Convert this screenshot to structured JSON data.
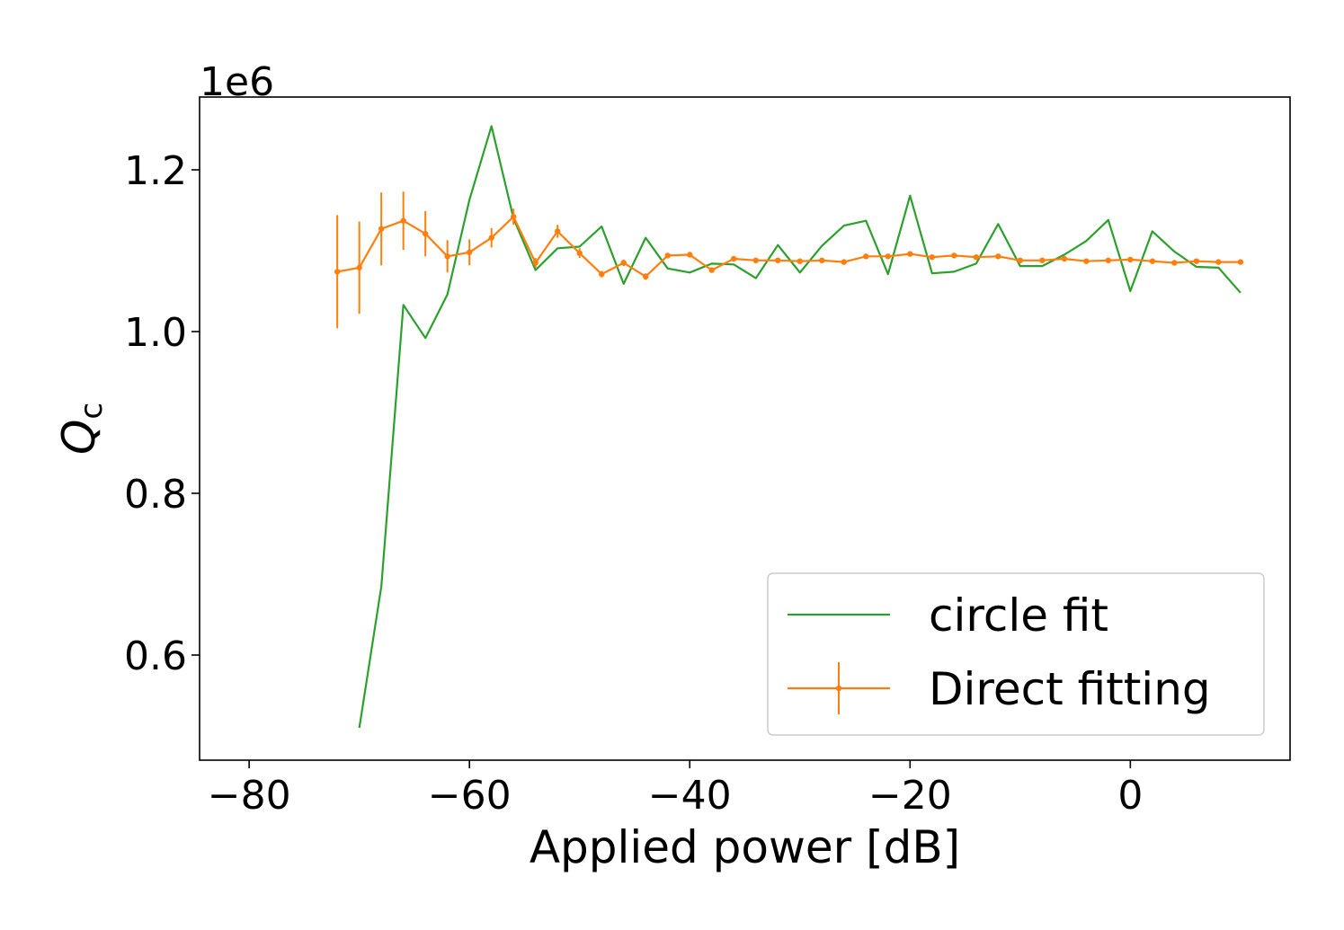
{
  "chart_data": {
    "type": "line",
    "xlabel": "Applied power [dB]",
    "ylabel_main": "Q",
    "ylabel_sub": "c",
    "y_offset_label": "1e6",
    "xlim": [
      -84.5,
      14.5
    ],
    "ylim": [
      0.47,
      1.29
    ],
    "xticks": [
      -80,
      -60,
      -40,
      -20,
      0
    ],
    "xtick_labels": [
      "−80",
      "−60",
      "−40",
      "−20",
      "0"
    ],
    "yticks": [
      0.6,
      0.8,
      1.0,
      1.2
    ],
    "ytick_labels": [
      "0.6",
      "0.8",
      "1.0",
      "1.2"
    ],
    "legend_position": "lower-right",
    "series": [
      {
        "name": "circle fit",
        "color": "#2ca02c",
        "x": [
          -70,
          -68,
          -66,
          -64,
          -62,
          -60,
          -58,
          -56,
          -54,
          -52,
          -50,
          -48,
          -46,
          -44,
          -42,
          -40,
          -38,
          -36,
          -34,
          -32,
          -30,
          -28,
          -26,
          -24,
          -22,
          -20,
          -18,
          -16,
          -14,
          -12,
          -10,
          -8,
          -6,
          -4,
          -2,
          0,
          2,
          4,
          6,
          8,
          10
        ],
        "y": [
          0.51,
          0.685,
          1.033,
          0.992,
          1.046,
          1.163,
          1.254,
          1.14,
          1.076,
          1.103,
          1.105,
          1.13,
          1.059,
          1.116,
          1.078,
          1.073,
          1.084,
          1.083,
          1.066,
          1.107,
          1.073,
          1.106,
          1.131,
          1.137,
          1.071,
          1.168,
          1.072,
          1.074,
          1.084,
          1.133,
          1.081,
          1.081,
          1.095,
          1.112,
          1.138,
          1.05,
          1.124,
          1.099,
          1.08,
          1.079,
          1.048
        ]
      },
      {
        "name": "Direct fitting",
        "color": "#ff7f0e",
        "x": [
          -72,
          -70,
          -68,
          -66,
          -64,
          -62,
          -60,
          -58,
          -56,
          -54,
          -52,
          -50,
          -48,
          -46,
          -44,
          -42,
          -40,
          -38,
          -36,
          -34,
          -32,
          -30,
          -28,
          -26,
          -24,
          -22,
          -20,
          -18,
          -16,
          -14,
          -12,
          -10,
          -8,
          -6,
          -4,
          -2,
          0,
          2,
          4,
          6,
          8,
          10
        ],
        "y": [
          1.074,
          1.079,
          1.127,
          1.137,
          1.121,
          1.093,
          1.098,
          1.116,
          1.142,
          1.085,
          1.124,
          1.097,
          1.071,
          1.085,
          1.068,
          1.094,
          1.095,
          1.076,
          1.09,
          1.088,
          1.088,
          1.087,
          1.088,
          1.086,
          1.093,
          1.093,
          1.096,
          1.092,
          1.094,
          1.092,
          1.093,
          1.088,
          1.088,
          1.09,
          1.087,
          1.088,
          1.089,
          1.087,
          1.085,
          1.087,
          1.086,
          1.086
        ],
        "yerr": [
          0.07,
          0.057,
          0.045,
          0.036,
          0.028,
          0.02,
          0.016,
          0.012,
          0.01,
          0.006,
          0.008,
          0.006,
          0.004,
          0.004,
          0.004,
          0.003,
          0.003,
          0.003,
          0.003,
          0.002,
          0.002,
          0.002,
          0.002,
          0.002,
          0.002,
          0.002,
          0.002,
          0.002,
          0.002,
          0.002,
          0.002,
          0.002,
          0.002,
          0.002,
          0.002,
          0.002,
          0.002,
          0.002,
          0.002,
          0.002,
          0.002,
          0.002
        ]
      }
    ]
  }
}
